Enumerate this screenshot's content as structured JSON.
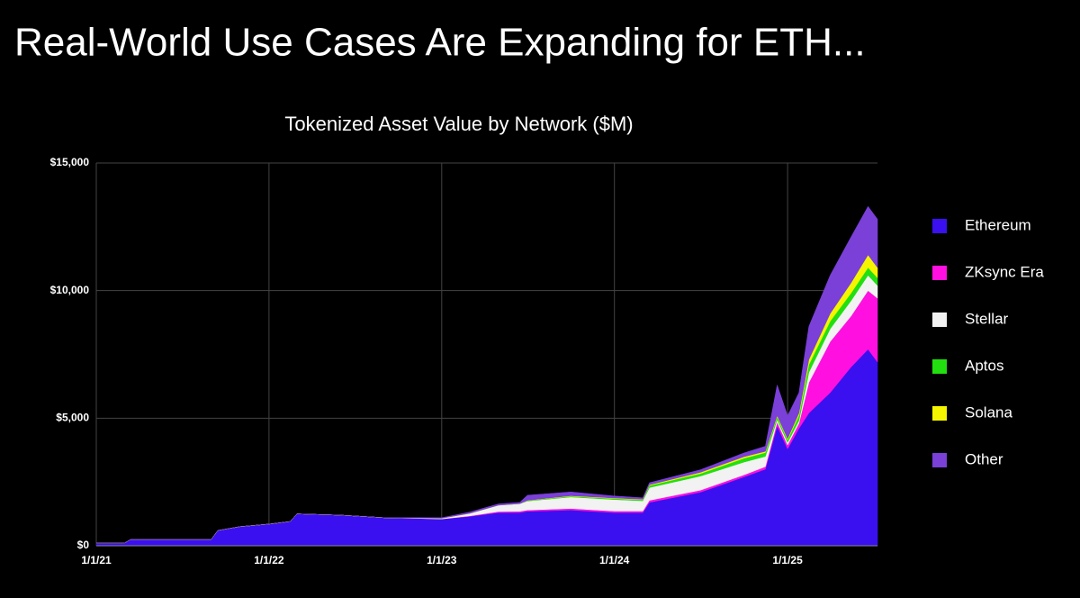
{
  "page_title": "Real-World Use Cases Are Expanding for ETH...",
  "chart_data": {
    "type": "stacked_area",
    "title": "Tokenized Asset Value by Network ($M)",
    "x": [
      "1/1/21",
      "3/1/21",
      "3/15/21",
      "9/1/21",
      "9/15/21",
      "11/1/21",
      "1/1/22",
      "2/15/22",
      "3/1/22",
      "6/1/22",
      "9/1/22",
      "1/1/23",
      "3/1/23",
      "5/1/23",
      "6/15/23",
      "7/1/23",
      "10/1/23",
      "1/1/24",
      "3/1/24",
      "3/15/24",
      "7/1/24",
      "10/1/24",
      "11/15/24",
      "12/10/24",
      "1/1/25",
      "1/25/25",
      "2/15/25",
      "4/1/25",
      "5/15/25",
      "6/20/25",
      "7/10/25"
    ],
    "series": [
      {
        "name": "Ethereum",
        "color": "#3a10f0",
        "values": [
          100,
          100,
          250,
          250,
          600,
          750,
          850,
          950,
          1250,
          1200,
          1100,
          1050,
          1150,
          1300,
          1300,
          1350,
          1400,
          1300,
          1300,
          1700,
          2100,
          2700,
          3000,
          4700,
          3800,
          4600,
          5200,
          6000,
          7000,
          7700,
          7200
        ]
      },
      {
        "name": "ZKsync Era",
        "color": "#ff10e0",
        "values": [
          0,
          0,
          0,
          0,
          0,
          0,
          0,
          0,
          0,
          0,
          0,
          0,
          20,
          40,
          50,
          50,
          60,
          60,
          60,
          80,
          80,
          80,
          100,
          150,
          150,
          200,
          1200,
          2000,
          2000,
          2300,
          2500
        ]
      },
      {
        "name": "Stellar",
        "color": "#f2f2f2",
        "values": [
          0,
          0,
          0,
          0,
          0,
          0,
          0,
          0,
          0,
          0,
          0,
          30,
          100,
          250,
          300,
          350,
          450,
          450,
          400,
          500,
          550,
          500,
          400,
          100,
          100,
          100,
          400,
          500,
          600,
          600,
          500
        ]
      },
      {
        "name": "Aptos",
        "color": "#22e010",
        "values": [
          0,
          0,
          0,
          0,
          0,
          0,
          0,
          0,
          0,
          0,
          0,
          0,
          0,
          0,
          0,
          20,
          30,
          40,
          40,
          80,
          100,
          150,
          150,
          100,
          100,
          200,
          300,
          300,
          300,
          300,
          300
        ]
      },
      {
        "name": "Solana",
        "color": "#f5f500",
        "values": [
          0,
          0,
          0,
          0,
          0,
          0,
          0,
          0,
          0,
          0,
          0,
          0,
          0,
          0,
          0,
          10,
          20,
          20,
          20,
          30,
          50,
          60,
          50,
          50,
          50,
          100,
          200,
          300,
          400,
          500,
          400
        ]
      },
      {
        "name": "Other",
        "color": "#7a40d8",
        "values": [
          0,
          0,
          0,
          0,
          0,
          0,
          0,
          0,
          0,
          0,
          0,
          20,
          50,
          50,
          50,
          200,
          150,
          80,
          60,
          80,
          100,
          150,
          200,
          1200,
          900,
          800,
          1300,
          1500,
          1800,
          1900,
          1900
        ]
      }
    ],
    "xlim": [
      "1/1/21",
      "7/10/25"
    ],
    "xticks": [
      "1/1/21",
      "1/1/22",
      "1/1/23",
      "1/1/24",
      "1/1/25"
    ],
    "ylim": [
      0,
      15000
    ],
    "yticks": [
      {
        "value": 0,
        "label": "$0"
      },
      {
        "value": 5000,
        "label": "$5,000"
      },
      {
        "value": 10000,
        "label": "$10,000"
      },
      {
        "value": 15000,
        "label": "$15,000"
      }
    ],
    "grid": true,
    "legend": "right"
  }
}
